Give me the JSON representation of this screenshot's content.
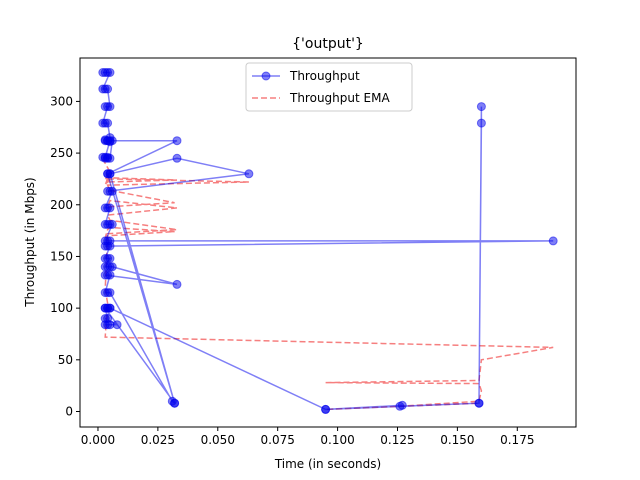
{
  "chart_data": {
    "type": "line",
    "title": "{'output'}",
    "xlabel": "Time (in seconds)",
    "ylabel": "Throughput (in Mbps)",
    "xlim": [
      -0.0075,
      0.1995
    ],
    "ylim": [
      -15,
      342
    ],
    "x_ticks": [
      0.0,
      0.025,
      0.05,
      0.075,
      0.1,
      0.125,
      0.15,
      0.175
    ],
    "x_tick_labels": [
      "0.000",
      "0.025",
      "0.050",
      "0.075",
      "0.100",
      "0.125",
      "0.150",
      "0.175"
    ],
    "y_ticks": [
      0,
      50,
      100,
      150,
      200,
      250,
      300
    ],
    "y_tick_labels": [
      "0",
      "50",
      "100",
      "150",
      "200",
      "250",
      "300"
    ],
    "legend_position": "top-center",
    "grid": false,
    "series": [
      {
        "name": "Throughput",
        "style": "solid-with-markers",
        "color": "#0000ee",
        "opacity": 0.5,
        "x": [
          0.002,
          0.003,
          0.004,
          0.005,
          0.002,
          0.003,
          0.004,
          0.005,
          0.003,
          0.004,
          0.002,
          0.003,
          0.004,
          0.005,
          0.003,
          0.004,
          0.005,
          0.003,
          0.004,
          0.005,
          0.003,
          0.004,
          0.002,
          0.003,
          0.004,
          0.005,
          0.006,
          0.033,
          0.004,
          0.005,
          0.032,
          0.004,
          0.005,
          0.033,
          0.063,
          0.004,
          0.005,
          0.006,
          0.003,
          0.004,
          0.005,
          0.003,
          0.004,
          0.005,
          0.006,
          0.003,
          0.004,
          0.005,
          0.19,
          0.003,
          0.004,
          0.005,
          0.003,
          0.004,
          0.005,
          0.003,
          0.004,
          0.005,
          0.006,
          0.033,
          0.003,
          0.004,
          0.005,
          0.003,
          0.004,
          0.005,
          0.031,
          0.032,
          0.003,
          0.004,
          0.005,
          0.003,
          0.004,
          0.005,
          0.008,
          0.003,
          0.004,
          0.003,
          0.004,
          0.005,
          0.095,
          0.127,
          0.126,
          0.159,
          0.16,
          0.16,
          0.159,
          0.095
        ],
        "y": [
          328,
          328,
          328,
          328,
          312,
          312,
          312,
          295,
          295,
          295,
          279,
          279,
          279,
          265,
          263,
          262,
          261,
          262,
          262,
          262,
          246,
          246,
          246,
          245,
          245,
          245,
          262,
          262,
          230,
          230,
          8,
          230,
          230,
          245,
          230,
          213,
          213,
          213,
          197,
          197,
          197,
          181,
          181,
          181,
          181,
          165,
          165,
          165,
          165,
          160,
          160,
          160,
          148,
          148,
          148,
          140,
          140,
          140,
          140,
          123,
          132,
          132,
          132,
          115,
          115,
          115,
          10,
          8,
          100,
          100,
          100,
          84,
          84,
          84,
          84,
          90,
          90,
          100,
          100,
          100,
          2,
          6,
          5,
          8,
          279,
          295,
          8,
          2
        ]
      },
      {
        "name": "Throughput EMA",
        "style": "dashed",
        "color": "#ee0000",
        "opacity": 0.5,
        "x": [
          0.002,
          0.003,
          0.004,
          0.005,
          0.004,
          0.003,
          0.004,
          0.005,
          0.004,
          0.003,
          0.004,
          0.005,
          0.004,
          0.003,
          0.006,
          0.033,
          0.004,
          0.005,
          0.063,
          0.004,
          0.005,
          0.032,
          0.004,
          0.005,
          0.033,
          0.004,
          0.005,
          0.033,
          0.004,
          0.003,
          0.004,
          0.005,
          0.032,
          0.004,
          0.003,
          0.004,
          0.003,
          0.19,
          0.16,
          0.159,
          0.095,
          0.159,
          0.16,
          0.159,
          0.126,
          0.095,
          0.127,
          0.159
        ],
        "y": [
          245,
          240,
          236,
          232,
          228,
          224,
          229,
          226,
          223,
          220,
          225,
          228,
          224,
          220,
          226,
          224,
          222,
          225,
          222,
          219,
          214,
          202,
          198,
          204,
          197,
          190,
          185,
          176,
          172,
          168,
          176,
          178,
          174,
          170,
          118,
          105,
          72,
          62,
          50,
          30,
          28,
          27,
          20,
          10,
          5,
          2,
          5,
          8
        ]
      }
    ]
  }
}
